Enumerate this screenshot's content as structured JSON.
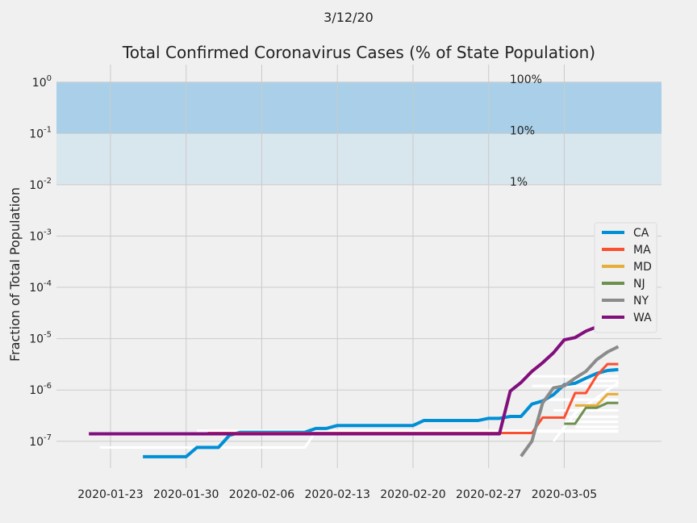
{
  "chart_data": {
    "type": "line",
    "suptitle": "3/12/20",
    "title": "Total Confirmed Coronavirus Cases (% of State Population)",
    "xlabel": "",
    "ylabel": "Fraction of Total Population",
    "yscale": "log",
    "ylim": [
      3e-08,
      2.2
    ],
    "xlim": [
      "2020-01-18",
      "2020-03-14"
    ],
    "x_ticks": [
      "2020-01-23",
      "2020-01-30",
      "2020-02-06",
      "2020-02-13",
      "2020-02-20",
      "2020-02-27",
      "2020-03-05"
    ],
    "y_ticks": [
      {
        "base": "10",
        "exp": "-7",
        "value": 1e-07
      },
      {
        "base": "10",
        "exp": "-6",
        "value": 1e-06
      },
      {
        "base": "10",
        "exp": "-5",
        "value": 1e-05
      },
      {
        "base": "10",
        "exp": "-4",
        "value": 0.0001
      },
      {
        "base": "10",
        "exp": "-3",
        "value": 0.001
      },
      {
        "base": "10",
        "exp": "-2",
        "value": 0.01
      },
      {
        "base": "10",
        "exp": "-1",
        "value": 0.1
      },
      {
        "base": "10",
        "exp": "0",
        "value": 1
      }
    ],
    "grid": true,
    "legend_position": "center-right",
    "bands": [
      {
        "from": 0.1,
        "to": 1,
        "label": "100%",
        "color": "#a9d0e8"
      },
      {
        "from": 0.01,
        "to": 0.1,
        "label": "10%",
        "color": "#d8e6ee"
      }
    ],
    "band_labels": [
      {
        "text": "100%",
        "y": 1
      },
      {
        "text": "10%",
        "y": 0.1
      },
      {
        "text": "1%",
        "y": 0.01
      }
    ],
    "series": [
      {
        "name": "CA",
        "color": "#008fd5",
        "width": 4,
        "legend": true,
        "x": [
          "2020-01-26",
          "2020-01-27",
          "2020-01-28",
          "2020-01-29",
          "2020-01-30",
          "2020-01-31",
          "2020-02-01",
          "2020-02-02",
          "2020-02-03",
          "2020-02-04",
          "2020-02-10",
          "2020-02-11",
          "2020-02-12",
          "2020-02-13",
          "2020-02-20",
          "2020-02-21",
          "2020-02-26",
          "2020-02-27",
          "2020-02-28",
          "2020-02-29",
          "2020-03-01",
          "2020-03-02",
          "2020-03-03",
          "2020-03-04",
          "2020-03-05",
          "2020-03-06",
          "2020-03-07",
          "2020-03-08",
          "2020-03-09",
          "2020-03-10"
        ],
        "y": [
          5e-08,
          5e-08,
          5e-08,
          5e-08,
          5e-08,
          7.6e-08,
          7.6e-08,
          7.6e-08,
          1.3e-07,
          1.5e-07,
          1.5e-07,
          1.78e-07,
          1.78e-07,
          2.03e-07,
          2.03e-07,
          2.54e-07,
          2.54e-07,
          2.8e-07,
          2.8e-07,
          3.05e-07,
          3.05e-07,
          5.3e-07,
          6.1e-07,
          8.1e-07,
          1.27e-06,
          1.35e-06,
          1.7e-06,
          2.1e-06,
          2.4e-06,
          2.5e-06
        ]
      },
      {
        "name": "MA",
        "color": "#fc4f30",
        "width": 3,
        "legend": true,
        "x": [
          "2020-02-01",
          "2020-03-01",
          "2020-03-02",
          "2020-03-03",
          "2020-03-04",
          "2020-03-05",
          "2020-03-06",
          "2020-03-07",
          "2020-03-08",
          "2020-03-09",
          "2020-03-10"
        ],
        "y": [
          1.45e-07,
          1.45e-07,
          1.45e-07,
          2.9e-07,
          2.9e-07,
          2.9e-07,
          8.7e-07,
          8.7e-07,
          1.9e-06,
          3.2e-06,
          3.2e-06
        ]
      },
      {
        "name": "MD",
        "color": "#e5ae38",
        "width": 3,
        "legend": true,
        "x": [
          "2020-03-06",
          "2020-03-07",
          "2020-03-08",
          "2020-03-09",
          "2020-03-10"
        ],
        "y": [
          5e-07,
          5e-07,
          5e-07,
          8.3e-07,
          8.3e-07
        ]
      },
      {
        "name": "NJ",
        "color": "#6d904f",
        "width": 3,
        "legend": true,
        "x": [
          "2020-03-05",
          "2020-03-06",
          "2020-03-07",
          "2020-03-08",
          "2020-03-09",
          "2020-03-10"
        ],
        "y": [
          2.2e-07,
          2.2e-07,
          4.5e-07,
          4.5e-07,
          5.6e-07,
          5.6e-07
        ]
      },
      {
        "name": "NY",
        "color": "#8b8b8b",
        "width": 4,
        "legend": true,
        "x": [
          "2020-03-01",
          "2020-03-02",
          "2020-03-03",
          "2020-03-04",
          "2020-03-05",
          "2020-03-06",
          "2020-03-07",
          "2020-03-08",
          "2020-03-09",
          "2020-03-10"
        ],
        "y": [
          5.1e-08,
          1e-07,
          5.6e-07,
          1.1e-06,
          1.2e-06,
          1.7e-06,
          2.3e-06,
          3.9e-06,
          5.5e-06,
          7e-06
        ]
      },
      {
        "name": "WA",
        "color": "#810f7c",
        "width": 4,
        "legend": true,
        "x": [
          "2020-01-21",
          "2020-02-28",
          "2020-02-29",
          "2020-03-01",
          "2020-03-02",
          "2020-03-03",
          "2020-03-04",
          "2020-03-05",
          "2020-03-06",
          "2020-03-07",
          "2020-03-08",
          "2020-03-09",
          "2020-03-10"
        ],
        "y": [
          1.4e-07,
          1.4e-07,
          9.5e-07,
          1.4e-06,
          2.3e-06,
          3.4e-06,
          5.3e-06,
          9.5e-06,
          1.05e-05,
          1.4e-05,
          1.7e-05,
          1.7e-05,
          1.7e-05
        ]
      },
      {
        "name": "",
        "color": "#ffffff",
        "width": 3,
        "legend": false,
        "x": [
          "2020-01-22",
          "2020-02-10",
          "2020-02-11",
          "2020-03-10"
        ],
        "y": [
          7.6e-08,
          7.6e-08,
          1.55e-07,
          1.55e-07
        ]
      },
      {
        "name": "",
        "color": "#ffffff",
        "width": 3,
        "legend": false,
        "x": [
          "2020-01-31",
          "2020-03-10"
        ],
        "y": [
          1.6e-07,
          1.6e-07
        ]
      },
      {
        "name": "",
        "color": "#ffffff",
        "width": 3,
        "legend": false,
        "x": [
          "2020-03-01",
          "2020-03-10"
        ],
        "y": [
          1.85e-06,
          1.85e-06
        ]
      },
      {
        "name": "",
        "color": "#ffffff",
        "width": 3,
        "legend": false,
        "x": [
          "2020-03-02",
          "2020-03-10"
        ],
        "y": [
          1.2e-06,
          1.2e-06
        ]
      },
      {
        "name": "",
        "color": "#ffffff",
        "width": 3,
        "legend": false,
        "x": [
          "2020-03-03",
          "2020-03-10"
        ],
        "y": [
          6.5e-07,
          6.5e-07
        ]
      },
      {
        "name": "",
        "color": "#ffffff",
        "width": 3,
        "legend": false,
        "x": [
          "2020-03-04",
          "2020-03-10"
        ],
        "y": [
          4e-07,
          4e-07
        ]
      },
      {
        "name": "",
        "color": "#ffffff",
        "width": 3,
        "legend": false,
        "x": [
          "2020-03-05",
          "2020-03-10"
        ],
        "y": [
          3e-07,
          3e-07
        ]
      },
      {
        "name": "",
        "color": "#ffffff",
        "width": 3,
        "legend": false,
        "x": [
          "2020-03-05",
          "2020-03-10"
        ],
        "y": [
          2.4e-07,
          2.4e-07
        ]
      },
      {
        "name": "",
        "color": "#ffffff",
        "width": 3,
        "legend": false,
        "x": [
          "2020-03-06",
          "2020-03-10"
        ],
        "y": [
          1.9e-07,
          1.9e-07
        ]
      },
      {
        "name": "",
        "color": "#ffffff",
        "width": 3,
        "legend": false,
        "x": [
          "2020-03-04",
          "2020-03-06",
          "2020-03-10"
        ],
        "y": [
          1e-07,
          3.5e-07,
          1.4e-06
        ]
      },
      {
        "name": "",
        "color": "#ffffff",
        "width": 3,
        "legend": false,
        "x": [
          "2020-03-06",
          "2020-03-10"
        ],
        "y": [
          1.5e-06,
          1.5e-06
        ]
      }
    ]
  }
}
